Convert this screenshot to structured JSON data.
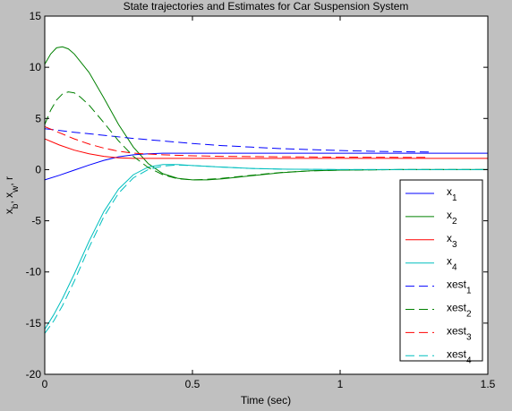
{
  "chart_data": {
    "type": "line",
    "title": "State trajectories and Estimates for Car Suspension System",
    "xlabel": "Time (sec)",
    "ylabel": {
      "parts": [
        {
          "t": "x",
          "sub": false
        },
        {
          "t": "b",
          "sub": true
        },
        {
          "t": ", x",
          "sub": false
        },
        {
          "t": "w",
          "sub": true
        },
        {
          "t": ", r",
          "sub": false
        }
      ]
    },
    "xlim": [
      0,
      1.5
    ],
    "ylim": [
      -20,
      15
    ],
    "xticks": [
      0,
      0.5,
      1,
      1.5
    ],
    "xtick_labels": [
      "0",
      "0.5",
      "1",
      "1.5"
    ],
    "yticks": [
      -20,
      -15,
      -10,
      -5,
      0,
      5,
      10,
      15
    ],
    "ytick_labels": [
      "-20",
      "-15",
      "-10",
      "-5",
      "0",
      "5",
      "10",
      "15"
    ],
    "grid": false,
    "legend_position": "bottom-right",
    "series": [
      {
        "name": "x",
        "sub": "1",
        "color": "#0000ff",
        "dash": "solid",
        "x": [
          0,
          0.05,
          0.1,
          0.15,
          0.2,
          0.25,
          0.3,
          0.35,
          0.4,
          0.5,
          0.6,
          0.8,
          1.0,
          1.2,
          1.5
        ],
        "y": [
          -1.0,
          -0.55,
          -0.05,
          0.45,
          0.9,
          1.25,
          1.45,
          1.55,
          1.6,
          1.6,
          1.6,
          1.6,
          1.6,
          1.6,
          1.6
        ]
      },
      {
        "name": "x",
        "sub": "2",
        "color": "#008000",
        "dash": "solid",
        "x": [
          0,
          0.02,
          0.04,
          0.06,
          0.08,
          0.1,
          0.15,
          0.2,
          0.25,
          0.3,
          0.35,
          0.4,
          0.45,
          0.5,
          0.55,
          0.6,
          0.7,
          0.8,
          0.9,
          1.0,
          1.2,
          1.5
        ],
        "y": [
          10.3,
          11.3,
          11.9,
          12.0,
          11.8,
          11.3,
          9.5,
          7.0,
          4.4,
          2.2,
          0.6,
          -0.4,
          -0.85,
          -1.0,
          -1.0,
          -0.9,
          -0.6,
          -0.3,
          -0.12,
          -0.05,
          0.0,
          0.0
        ]
      },
      {
        "name": "x",
        "sub": "3",
        "color": "#ff0000",
        "dash": "solid",
        "x": [
          0,
          0.05,
          0.1,
          0.15,
          0.2,
          0.25,
          0.3,
          0.4,
          0.5,
          0.6,
          0.8,
          1.0,
          1.2,
          1.5
        ],
        "y": [
          3.0,
          2.4,
          1.9,
          1.55,
          1.3,
          1.15,
          1.1,
          1.1,
          1.1,
          1.1,
          1.1,
          1.1,
          1.1,
          1.1
        ]
      },
      {
        "name": "x",
        "sub": "4",
        "color": "#00bfbf",
        "dash": "solid",
        "x": [
          0,
          0.03,
          0.06,
          0.1,
          0.15,
          0.2,
          0.25,
          0.3,
          0.35,
          0.4,
          0.45,
          0.5,
          0.6,
          0.7,
          0.8,
          1.0,
          1.2,
          1.5
        ],
        "y": [
          -15.6,
          -14.2,
          -12.6,
          -10.2,
          -7.0,
          -4.1,
          -1.9,
          -0.5,
          0.25,
          0.5,
          0.5,
          0.4,
          0.25,
          0.12,
          0.05,
          0.0,
          0.0,
          0.0
        ]
      },
      {
        "name": "xest",
        "sub": "1",
        "color": "#0000ff",
        "dash": "dashed",
        "x": [
          0,
          0.1,
          0.2,
          0.3,
          0.4,
          0.5,
          0.6,
          0.7,
          0.8,
          0.9,
          1.0,
          1.1,
          1.2,
          1.3
        ],
        "y": [
          4.0,
          3.65,
          3.35,
          3.05,
          2.8,
          2.55,
          2.35,
          2.2,
          2.05,
          1.95,
          1.87,
          1.8,
          1.75,
          1.72
        ]
      },
      {
        "name": "xest",
        "sub": "2",
        "color": "#008000",
        "dash": "dashed",
        "x": [
          0,
          0.02,
          0.04,
          0.06,
          0.08,
          0.1,
          0.12,
          0.15,
          0.2,
          0.25,
          0.3,
          0.35,
          0.4,
          0.45,
          0.5,
          0.55,
          0.6,
          0.7,
          0.8,
          0.9,
          1.0,
          1.2,
          1.5
        ],
        "y": [
          4.4,
          5.8,
          6.8,
          7.4,
          7.6,
          7.5,
          7.1,
          6.3,
          4.6,
          2.8,
          1.3,
          0.2,
          -0.5,
          -0.9,
          -1.0,
          -0.95,
          -0.85,
          -0.55,
          -0.28,
          -0.12,
          -0.05,
          0.0,
          0.0
        ]
      },
      {
        "name": "xest",
        "sub": "3",
        "color": "#ff0000",
        "dash": "dashed",
        "x": [
          0,
          0.05,
          0.1,
          0.15,
          0.2,
          0.25,
          0.3,
          0.4,
          0.5,
          0.6,
          0.8,
          1.0,
          1.2,
          1.3
        ],
        "y": [
          4.2,
          3.6,
          3.0,
          2.5,
          2.1,
          1.8,
          1.6,
          1.45,
          1.35,
          1.3,
          1.25,
          1.22,
          1.2,
          1.2
        ]
      },
      {
        "name": "xest",
        "sub": "4",
        "color": "#00bfbf",
        "dash": "dashed",
        "x": [
          0,
          0.03,
          0.06,
          0.1,
          0.15,
          0.2,
          0.25,
          0.3,
          0.35,
          0.4,
          0.45,
          0.5,
          0.6,
          0.7,
          0.8,
          1.0,
          1.2,
          1.5
        ],
        "y": [
          -16.0,
          -14.8,
          -13.3,
          -10.9,
          -7.6,
          -4.6,
          -2.3,
          -0.8,
          0.0,
          0.35,
          0.45,
          0.4,
          0.25,
          0.12,
          0.05,
          0.0,
          0.0,
          0.0
        ]
      }
    ]
  }
}
